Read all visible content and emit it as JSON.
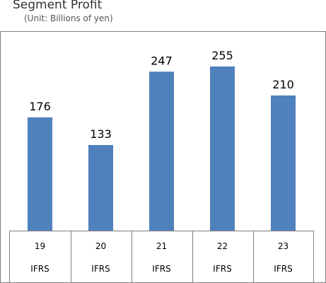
{
  "chart_data": {
    "type": "bar",
    "title": "Segment Profit",
    "subtitle": "(Unit: Billions of yen)",
    "categories": [
      "19",
      "20",
      "21",
      "22",
      "23"
    ],
    "sublabels": [
      "IFRS",
      "IFRS",
      "IFRS",
      "IFRS",
      "IFRS"
    ],
    "values": [
      176,
      133,
      247,
      255,
      210
    ],
    "ylim": [
      0,
      300
    ],
    "grid": false,
    "legend": "none",
    "bar_color": "#4F81BD",
    "border_color": "#7F7F7F"
  }
}
